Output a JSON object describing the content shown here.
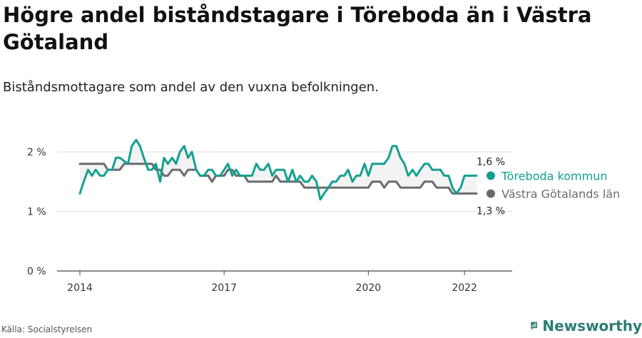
{
  "header": {
    "title": "Högre andel biståndstagare i Töreboda än i Västra Götaland",
    "subtitle": "Biståndsmottagare som andel av den vuxna befolkningen."
  },
  "footer": {
    "source": "Källa: Socialstyrelsen",
    "brand": "Newsworthy"
  },
  "chart_data": {
    "type": "line",
    "xlim": [
      2014,
      2022.85
    ],
    "ylim": [
      0,
      2.25
    ],
    "x_ticks": [
      {
        "value": 2014,
        "label": "2014"
      },
      {
        "value": 2017,
        "label": "2017"
      },
      {
        "value": 2020,
        "label": "2020"
      },
      {
        "value": 2022,
        "label": "2022"
      }
    ],
    "y_ticks": [
      {
        "value": 0,
        "label": "0 %"
      },
      {
        "value": 1,
        "label": "1 %"
      },
      {
        "value": 2,
        "label": "2 %"
      }
    ],
    "grid": "horizontal",
    "series": [
      {
        "name": "Töreboda kommun",
        "color": "#14a090",
        "end_label": "1,6 %",
        "points": [
          [
            2014.0,
            1.3
          ],
          [
            2014.08,
            1.5
          ],
          [
            2014.17,
            1.7
          ],
          [
            2014.25,
            1.6
          ],
          [
            2014.33,
            1.7
          ],
          [
            2014.42,
            1.6
          ],
          [
            2014.5,
            1.6
          ],
          [
            2014.58,
            1.7
          ],
          [
            2014.67,
            1.7
          ],
          [
            2014.75,
            1.9
          ],
          [
            2014.83,
            1.9
          ],
          [
            2015.0,
            1.8
          ],
          [
            2015.08,
            2.1
          ],
          [
            2015.17,
            2.2
          ],
          [
            2015.25,
            2.1
          ],
          [
            2015.33,
            1.9
          ],
          [
            2015.42,
            1.7
          ],
          [
            2015.5,
            1.7
          ],
          [
            2015.58,
            1.8
          ],
          [
            2015.67,
            1.5
          ],
          [
            2015.75,
            1.9
          ],
          [
            2015.83,
            1.8
          ],
          [
            2015.92,
            1.9
          ],
          [
            2016.0,
            1.8
          ],
          [
            2016.08,
            2.0
          ],
          [
            2016.17,
            2.1
          ],
          [
            2016.25,
            1.9
          ],
          [
            2016.33,
            2.0
          ],
          [
            2016.42,
            1.7
          ],
          [
            2016.5,
            1.6
          ],
          [
            2016.58,
            1.6
          ],
          [
            2016.67,
            1.7
          ],
          [
            2016.75,
            1.7
          ],
          [
            2016.83,
            1.6
          ],
          [
            2016.92,
            1.6
          ],
          [
            2017.0,
            1.7
          ],
          [
            2017.08,
            1.8
          ],
          [
            2017.17,
            1.6
          ],
          [
            2017.25,
            1.7
          ],
          [
            2017.33,
            1.6
          ],
          [
            2017.42,
            1.6
          ],
          [
            2017.5,
            1.6
          ],
          [
            2017.58,
            1.6
          ],
          [
            2017.67,
            1.8
          ],
          [
            2017.75,
            1.7
          ],
          [
            2017.83,
            1.7
          ],
          [
            2017.92,
            1.8
          ],
          [
            2018.0,
            1.6
          ],
          [
            2018.08,
            1.7
          ],
          [
            2018.17,
            1.7
          ],
          [
            2018.25,
            1.7
          ],
          [
            2018.33,
            1.5
          ],
          [
            2018.42,
            1.7
          ],
          [
            2018.5,
            1.5
          ],
          [
            2018.58,
            1.6
          ],
          [
            2018.67,
            1.5
          ],
          [
            2018.75,
            1.5
          ],
          [
            2018.83,
            1.6
          ],
          [
            2018.92,
            1.5
          ],
          [
            2019.0,
            1.2
          ],
          [
            2019.08,
            1.3
          ],
          [
            2019.17,
            1.4
          ],
          [
            2019.25,
            1.5
          ],
          [
            2019.33,
            1.5
          ],
          [
            2019.42,
            1.6
          ],
          [
            2019.5,
            1.6
          ],
          [
            2019.58,
            1.7
          ],
          [
            2019.67,
            1.5
          ],
          [
            2019.75,
            1.6
          ],
          [
            2019.83,
            1.6
          ],
          [
            2019.92,
            1.8
          ],
          [
            2020.0,
            1.6
          ],
          [
            2020.08,
            1.8
          ],
          [
            2020.17,
            1.8
          ],
          [
            2020.25,
            1.8
          ],
          [
            2020.33,
            1.8
          ],
          [
            2020.42,
            1.9
          ],
          [
            2020.5,
            2.1
          ],
          [
            2020.58,
            2.1
          ],
          [
            2020.67,
            1.9
          ],
          [
            2020.75,
            1.8
          ],
          [
            2020.83,
            1.6
          ],
          [
            2020.92,
            1.7
          ],
          [
            2021.0,
            1.6
          ],
          [
            2021.08,
            1.7
          ],
          [
            2021.17,
            1.8
          ],
          [
            2021.25,
            1.8
          ],
          [
            2021.33,
            1.7
          ],
          [
            2021.42,
            1.7
          ],
          [
            2021.5,
            1.7
          ],
          [
            2021.58,
            1.6
          ],
          [
            2021.67,
            1.6
          ],
          [
            2021.75,
            1.4
          ],
          [
            2021.83,
            1.3
          ],
          [
            2021.92,
            1.4
          ],
          [
            2022.0,
            1.6
          ],
          [
            2022.08,
            1.6
          ],
          [
            2022.17,
            1.6
          ],
          [
            2022.25,
            1.6
          ]
        ]
      },
      {
        "name": "Västra Götalands län",
        "color": "#6b6b6b",
        "end_label": "1,3 %",
        "points": [
          [
            2014.0,
            1.8
          ],
          [
            2014.08,
            1.8
          ],
          [
            2014.17,
            1.8
          ],
          [
            2014.25,
            1.8
          ],
          [
            2014.33,
            1.8
          ],
          [
            2014.42,
            1.8
          ],
          [
            2014.5,
            1.8
          ],
          [
            2014.58,
            1.7
          ],
          [
            2014.67,
            1.7
          ],
          [
            2014.75,
            1.7
          ],
          [
            2014.83,
            1.7
          ],
          [
            2014.92,
            1.8
          ],
          [
            2015.0,
            1.8
          ],
          [
            2015.08,
            1.8
          ],
          [
            2015.17,
            1.8
          ],
          [
            2015.25,
            1.8
          ],
          [
            2015.33,
            1.8
          ],
          [
            2015.42,
            1.8
          ],
          [
            2015.5,
            1.8
          ],
          [
            2015.58,
            1.7
          ],
          [
            2015.67,
            1.7
          ],
          [
            2015.75,
            1.6
          ],
          [
            2015.83,
            1.6
          ],
          [
            2015.92,
            1.7
          ],
          [
            2016.0,
            1.7
          ],
          [
            2016.08,
            1.7
          ],
          [
            2016.17,
            1.6
          ],
          [
            2016.25,
            1.7
          ],
          [
            2016.33,
            1.7
          ],
          [
            2016.42,
            1.7
          ],
          [
            2016.5,
            1.6
          ],
          [
            2016.58,
            1.6
          ],
          [
            2016.67,
            1.6
          ],
          [
            2016.75,
            1.5
          ],
          [
            2016.83,
            1.6
          ],
          [
            2016.92,
            1.6
          ],
          [
            2017.0,
            1.6
          ],
          [
            2017.08,
            1.7
          ],
          [
            2017.17,
            1.7
          ],
          [
            2017.25,
            1.6
          ],
          [
            2017.33,
            1.6
          ],
          [
            2017.42,
            1.6
          ],
          [
            2017.5,
            1.5
          ],
          [
            2017.58,
            1.5
          ],
          [
            2017.67,
            1.5
          ],
          [
            2017.75,
            1.5
          ],
          [
            2017.83,
            1.5
          ],
          [
            2017.92,
            1.5
          ],
          [
            2018.0,
            1.5
          ],
          [
            2018.08,
            1.6
          ],
          [
            2018.17,
            1.5
          ],
          [
            2018.25,
            1.5
          ],
          [
            2018.33,
            1.5
          ],
          [
            2018.42,
            1.5
          ],
          [
            2018.5,
            1.5
          ],
          [
            2018.58,
            1.5
          ],
          [
            2018.67,
            1.4
          ],
          [
            2018.75,
            1.4
          ],
          [
            2018.83,
            1.4
          ],
          [
            2018.92,
            1.4
          ],
          [
            2019.0,
            1.4
          ],
          [
            2019.08,
            1.4
          ],
          [
            2019.17,
            1.4
          ],
          [
            2019.25,
            1.4
          ],
          [
            2019.33,
            1.4
          ],
          [
            2019.42,
            1.4
          ],
          [
            2019.5,
            1.4
          ],
          [
            2019.58,
            1.4
          ],
          [
            2019.67,
            1.4
          ],
          [
            2019.75,
            1.4
          ],
          [
            2019.83,
            1.4
          ],
          [
            2019.92,
            1.4
          ],
          [
            2020.0,
            1.4
          ],
          [
            2020.08,
            1.5
          ],
          [
            2020.17,
            1.5
          ],
          [
            2020.25,
            1.5
          ],
          [
            2020.33,
            1.4
          ],
          [
            2020.42,
            1.5
          ],
          [
            2020.5,
            1.5
          ],
          [
            2020.58,
            1.5
          ],
          [
            2020.67,
            1.4
          ],
          [
            2020.75,
            1.4
          ],
          [
            2020.83,
            1.4
          ],
          [
            2020.92,
            1.4
          ],
          [
            2021.0,
            1.4
          ],
          [
            2021.08,
            1.4
          ],
          [
            2021.17,
            1.5
          ],
          [
            2021.25,
            1.5
          ],
          [
            2021.33,
            1.5
          ],
          [
            2021.42,
            1.4
          ],
          [
            2021.5,
            1.4
          ],
          [
            2021.58,
            1.4
          ],
          [
            2021.67,
            1.4
          ],
          [
            2021.75,
            1.3
          ],
          [
            2021.83,
            1.3
          ],
          [
            2021.92,
            1.3
          ],
          [
            2022.0,
            1.3
          ],
          [
            2022.08,
            1.3
          ],
          [
            2022.17,
            1.3
          ],
          [
            2022.25,
            1.3
          ]
        ]
      }
    ]
  }
}
